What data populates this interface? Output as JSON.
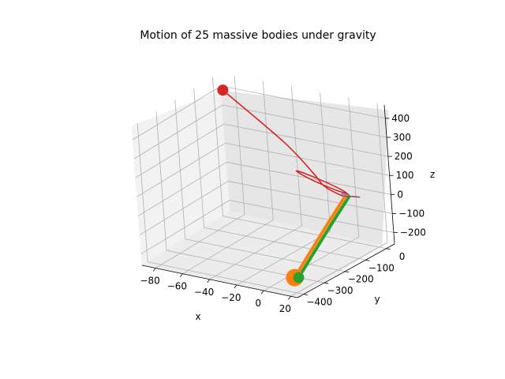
{
  "chart_data": {
    "type": "line",
    "projection": "3d",
    "title": "Motion of 25 massive bodies under gravity",
    "xlabel": "x",
    "ylabel": "y",
    "zlabel": "z",
    "xlim": [
      -90,
      25
    ],
    "ylim": [
      -430,
      40
    ],
    "zlim": [
      -260,
      470
    ],
    "xticks": [
      "−80",
      "−60",
      "−40",
      "−20",
      "0",
      "20"
    ],
    "xtick_values": [
      -80,
      -60,
      -40,
      -20,
      0,
      20
    ],
    "yticks": [
      "−400",
      "−300",
      "−200",
      "−100",
      "0"
    ],
    "ytick_values": [
      -400,
      -300,
      -200,
      -100,
      0
    ],
    "zticks": [
      "−200",
      "−100",
      "0",
      "100",
      "200",
      "300",
      "400"
    ],
    "ztick_values": [
      -200,
      -100,
      0,
      100,
      200,
      300,
      400
    ],
    "grid": true,
    "series": [
      {
        "color": "#d62728",
        "path": [
          {
            "x": -82,
            "y": -10,
            "z": 420
          },
          {
            "x": -40,
            "y": -15,
            "z": 210
          },
          {
            "x": -20,
            "y": -20,
            "z": 80
          },
          {
            "x": -10,
            "y": -40,
            "z": 40
          },
          {
            "x": 5,
            "y": -60,
            "z": 25
          },
          {
            "x": 8,
            "y": -45,
            "z": 15
          },
          {
            "x": 0,
            "y": -20,
            "z": 20
          },
          {
            "x": -20,
            "y": -5,
            "z": 45
          },
          {
            "x": -35,
            "y": 0,
            "z": 60
          },
          {
            "x": -25,
            "y": -10,
            "z": 40
          },
          {
            "x": -5,
            "y": -30,
            "z": 25
          },
          {
            "x": 5,
            "y": -40,
            "z": 25
          }
        ],
        "end": {
          "x": -82,
          "y": -10,
          "z": 420
        }
      },
      {
        "color": "#ff7f0e",
        "path": [
          {
            "x": 5,
            "y": -45,
            "z": 10
          },
          {
            "x": 6,
            "y": -150,
            "z": -80
          },
          {
            "x": 7,
            "y": -260,
            "z": -180
          },
          {
            "x": 8,
            "y": -330,
            "z": -240
          }
        ],
        "end": {
          "x": 8,
          "y": -330,
          "z": -240
        }
      },
      {
        "color": "#2ca02c",
        "path": [
          {
            "x": 8,
            "y": -45,
            "z": 15
          },
          {
            "x": 9,
            "y": -150,
            "z": -75
          },
          {
            "x": 10,
            "y": -260,
            "z": -175
          },
          {
            "x": 11,
            "y": -330,
            "z": -235
          }
        ],
        "end": {
          "x": 11,
          "y": -330,
          "z": -235
        }
      },
      {
        "color": "#9467bd",
        "path": [
          {
            "x": 2,
            "y": -40,
            "z": 18
          },
          {
            "x": 4,
            "y": -45,
            "z": 22
          },
          {
            "x": 6,
            "y": -42,
            "z": 20
          }
        ]
      },
      {
        "color": "#8c564b",
        "path": [
          {
            "x": 4,
            "y": -50,
            "z": 15
          },
          {
            "x": 10,
            "y": -40,
            "z": 15
          },
          {
            "x": 14,
            "y": -35,
            "z": 15
          }
        ]
      }
    ]
  }
}
